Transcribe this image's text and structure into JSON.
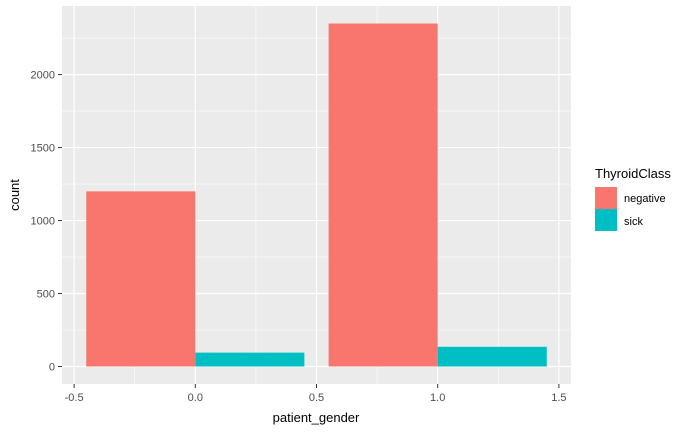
{
  "chart_data": {
    "type": "bar",
    "title": "",
    "xlabel": "patient_gender",
    "ylabel": "count",
    "xlim": [
      -0.55,
      1.55
    ],
    "ylim": [
      -120,
      2470
    ],
    "x_ticks": [
      -0.5,
      0.0,
      0.5,
      1.0,
      1.5
    ],
    "x_tick_labels": [
      "-0.5",
      "0.0",
      "0.5",
      "1.0",
      "1.5"
    ],
    "y_ticks": [
      0,
      500,
      1000,
      1500,
      2000
    ],
    "y_tick_labels": [
      "0",
      "500",
      "1000",
      "1500",
      "2000"
    ],
    "x": [
      0,
      1
    ],
    "bar_width": 0.9,
    "series": [
      {
        "name": "negative",
        "color": "#F8766D",
        "values": [
          1200,
          2350
        ]
      },
      {
        "name": "sick",
        "color": "#00BFC4",
        "values": [
          95,
          135
        ]
      }
    ],
    "grid": true,
    "legend": {
      "title": "ThyroidClass",
      "position": "right"
    },
    "panel_background": "#EBEBEB",
    "grid_color": "#FFFFFF"
  }
}
